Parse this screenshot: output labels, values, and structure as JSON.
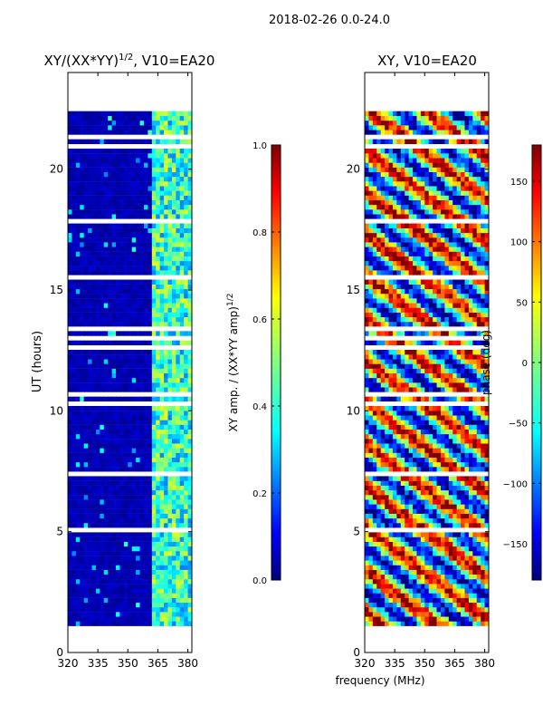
{
  "figure": {
    "suptitle": "2018-02-26 0.0-24.0",
    "shared_xlabel": "frequency (MHz)"
  },
  "colors": {
    "jet": [
      "#00007f",
      "#0000ff",
      "#007fff",
      "#00ffff",
      "#7fff7f",
      "#ffff00",
      "#ff7f00",
      "#ff0000",
      "#7f0000"
    ],
    "background": "#ffffff",
    "axis": "#000000",
    "gap": "#ffffff"
  },
  "chart_data": [
    {
      "type": "heatmap",
      "panel": "left",
      "title_main": "XY/(XX*YY)",
      "title_sup": "1/2",
      "title_rest": ", V10=EA20",
      "xlabel": "",
      "ylabel": "UT (hours)",
      "xlim": [
        320,
        382
      ],
      "ylim": [
        0,
        24
      ],
      "xticks": [
        320,
        335,
        350,
        365,
        380
      ],
      "yticks": [
        0,
        5,
        10,
        15,
        20
      ],
      "data_time_range": [
        1.1,
        22.4
      ],
      "active_band_mhz": [
        362,
        382
      ],
      "value_description": "normalized XY amplitude; near 0 below 362 MHz, 0.3-0.6 in 362-382 MHz band",
      "colorbar": {
        "label_main": "XY amp. / (XX*YY amp)",
        "label_sup": "1/2",
        "range": [
          0.0,
          1.0
        ],
        "ticks": [
          0.0,
          0.2,
          0.4,
          0.6,
          0.8,
          1.0
        ],
        "tick_labels": [
          "0.0",
          "0.2",
          "0.4",
          "0.6",
          "0.8",
          "1.0"
        ]
      }
    },
    {
      "type": "heatmap",
      "panel": "right",
      "title": "XY, V10=EA20",
      "xlabel": "",
      "ylabel": "",
      "xlim": [
        320,
        382
      ],
      "ylim": [
        0,
        24
      ],
      "xticks": [
        320,
        335,
        350,
        365,
        380
      ],
      "yticks": [
        0,
        5,
        10,
        15,
        20
      ],
      "data_time_range": [
        1.1,
        22.4
      ],
      "value_description": "XY phase in degrees, spanning -180 to 180",
      "colorbar": {
        "label": "phase (deg)",
        "range": [
          -180,
          180
        ],
        "ticks": [
          -150,
          -100,
          -50,
          0,
          50,
          100,
          150
        ],
        "tick_labels": [
          "−150",
          "−100",
          "−50",
          "0",
          "50",
          "100",
          "150"
        ]
      }
    }
  ]
}
